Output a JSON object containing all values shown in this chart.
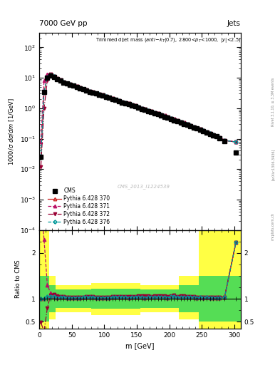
{
  "title_top": "7000 GeV pp",
  "title_right": "Jets",
  "annotation_line1": "Trimmed dijet mass (anti-k_{T}(0.7), 2800<p_{T}<1000, |y|<2.5)",
  "watermark": "CMS_2013_I1224539",
  "xlabel": "m [GeV]",
  "ylabel_main": "1000/σ dσ/dm [1/GeV]",
  "ylabel_ratio": "Ratio to CMS",
  "rivet_label": "Rivet 3.1.10, ≥ 3.3M events",
  "arxiv_label": "[arXiv:1306.3436]",
  "mcplots_label": "mcplots.cern.ch",
  "cms_data_x": [
    2.5,
    7.5,
    12.5,
    17.5,
    22.5,
    27.5,
    32.5,
    37.5,
    42.5,
    47.5,
    52.5,
    57.5,
    62.5,
    67.5,
    72.5,
    77.5,
    82.5,
    87.5,
    92.5,
    97.5,
    102.5,
    107.5,
    112.5,
    117.5,
    122.5,
    127.5,
    132.5,
    137.5,
    142.5,
    147.5,
    152.5,
    157.5,
    162.5,
    167.5,
    172.5,
    177.5,
    182.5,
    187.5,
    192.5,
    197.5,
    202.5,
    207.5,
    212.5,
    217.5,
    222.5,
    227.5,
    232.5,
    237.5,
    242.5,
    247.5,
    252.5,
    257.5,
    262.5,
    267.5,
    272.5,
    277.5,
    285.0,
    302.5
  ],
  "cms_data_y": [
    0.025,
    3.5,
    10.0,
    12.0,
    10.5,
    9.0,
    8.0,
    7.0,
    6.5,
    6.0,
    5.5,
    5.0,
    4.5,
    4.2,
    3.8,
    3.5,
    3.2,
    3.0,
    2.8,
    2.6,
    2.4,
    2.2,
    2.0,
    1.85,
    1.7,
    1.55,
    1.45,
    1.35,
    1.25,
    1.15,
    1.05,
    0.95,
    0.88,
    0.81,
    0.75,
    0.69,
    0.63,
    0.58,
    0.53,
    0.49,
    0.44,
    0.4,
    0.37,
    0.34,
    0.31,
    0.285,
    0.26,
    0.235,
    0.215,
    0.195,
    0.178,
    0.16,
    0.145,
    0.13,
    0.118,
    0.105,
    0.085,
    0.035
  ],
  "py370_y": [
    0.025,
    3.5,
    10.5,
    12.5,
    11.0,
    9.2,
    8.2,
    7.2,
    6.6,
    6.1,
    5.6,
    5.1,
    4.6,
    4.3,
    3.9,
    3.6,
    3.3,
    3.05,
    2.85,
    2.65,
    2.45,
    2.25,
    2.05,
    1.9,
    1.75,
    1.6,
    1.5,
    1.38,
    1.28,
    1.18,
    1.08,
    0.98,
    0.9,
    0.83,
    0.77,
    0.71,
    0.65,
    0.6,
    0.55,
    0.5,
    0.46,
    0.42,
    0.38,
    0.35,
    0.32,
    0.295,
    0.268,
    0.242,
    0.22,
    0.2,
    0.182,
    0.165,
    0.148,
    0.133,
    0.12,
    0.107,
    0.087,
    0.078
  ],
  "py371_y": [
    0.08,
    8.0,
    13.0,
    13.5,
    11.5,
    9.5,
    8.4,
    7.3,
    6.7,
    6.15,
    5.65,
    5.15,
    4.65,
    4.35,
    3.95,
    3.65,
    3.35,
    3.1,
    2.9,
    2.7,
    2.48,
    2.28,
    2.08,
    1.93,
    1.78,
    1.63,
    1.52,
    1.41,
    1.31,
    1.21,
    1.11,
    1.01,
    0.93,
    0.86,
    0.79,
    0.73,
    0.67,
    0.615,
    0.565,
    0.515,
    0.47,
    0.43,
    0.39,
    0.36,
    0.33,
    0.3,
    0.272,
    0.246,
    0.223,
    0.202,
    0.184,
    0.166,
    0.15,
    0.135,
    0.122,
    0.109,
    0.088,
    0.078
  ],
  "py372_y": [
    0.012,
    1.0,
    8.0,
    13.0,
    11.5,
    9.5,
    8.4,
    7.3,
    6.7,
    6.15,
    5.65,
    5.15,
    4.65,
    4.35,
    3.95,
    3.65,
    3.35,
    3.1,
    2.9,
    2.7,
    2.48,
    2.28,
    2.08,
    1.93,
    1.78,
    1.63,
    1.52,
    1.41,
    1.31,
    1.21,
    1.11,
    1.01,
    0.93,
    0.86,
    0.79,
    0.73,
    0.67,
    0.615,
    0.565,
    0.515,
    0.47,
    0.43,
    0.39,
    0.36,
    0.33,
    0.3,
    0.272,
    0.246,
    0.223,
    0.202,
    0.184,
    0.166,
    0.15,
    0.135,
    0.122,
    0.109,
    0.088,
    0.078
  ],
  "py376_y": [
    0.025,
    3.5,
    10.5,
    12.5,
    11.0,
    9.2,
    8.2,
    7.2,
    6.6,
    6.1,
    5.6,
    5.1,
    4.6,
    4.3,
    3.9,
    3.6,
    3.3,
    3.05,
    2.85,
    2.65,
    2.45,
    2.25,
    2.05,
    1.9,
    1.75,
    1.6,
    1.5,
    1.38,
    1.28,
    1.18,
    1.08,
    0.98,
    0.9,
    0.83,
    0.77,
    0.71,
    0.65,
    0.6,
    0.55,
    0.5,
    0.46,
    0.42,
    0.38,
    0.35,
    0.32,
    0.295,
    0.268,
    0.242,
    0.22,
    0.2,
    0.182,
    0.165,
    0.148,
    0.133,
    0.12,
    0.107,
    0.087,
    0.078
  ],
  "color_cms": "#000000",
  "color_370": "#cc2222",
  "color_371": "#bb1166",
  "color_372": "#990033",
  "color_376": "#009999",
  "ylim_main": [
    0.0001,
    300
  ],
  "xlim": [
    0,
    310
  ],
  "ratio_ylim": [
    0.35,
    2.5
  ],
  "band_yellow_edges": [
    0,
    5,
    5,
    15,
    15,
    25,
    25,
    80,
    80,
    155,
    155,
    215,
    215,
    245,
    245,
    260,
    260,
    310
  ],
  "band_yellow_lo": [
    0.3,
    0.3,
    0.3,
    0.3,
    0.55,
    0.55,
    0.7,
    0.7,
    0.65,
    0.65,
    0.7,
    0.7,
    0.55,
    0.55,
    0.3,
    0.3,
    0.3,
    0.3
  ],
  "band_yellow_hi": [
    2.5,
    2.5,
    2.5,
    2.5,
    1.5,
    1.5,
    1.3,
    1.3,
    1.35,
    1.35,
    1.3,
    1.3,
    1.5,
    1.5,
    2.5,
    2.5,
    2.5,
    2.5
  ],
  "band_green_edges": [
    0,
    5,
    5,
    15,
    15,
    25,
    25,
    80,
    80,
    155,
    155,
    215,
    215,
    245,
    245,
    260,
    260,
    310
  ],
  "band_green_lo": [
    0.5,
    0.5,
    0.5,
    0.5,
    0.7,
    0.7,
    0.8,
    0.8,
    0.78,
    0.78,
    0.8,
    0.8,
    0.7,
    0.7,
    0.5,
    0.5,
    0.5,
    0.5
  ],
  "band_green_hi": [
    1.5,
    1.5,
    1.5,
    1.5,
    1.3,
    1.3,
    1.2,
    1.2,
    1.22,
    1.22,
    1.2,
    1.2,
    1.3,
    1.3,
    1.5,
    1.5,
    1.5,
    1.5
  ]
}
